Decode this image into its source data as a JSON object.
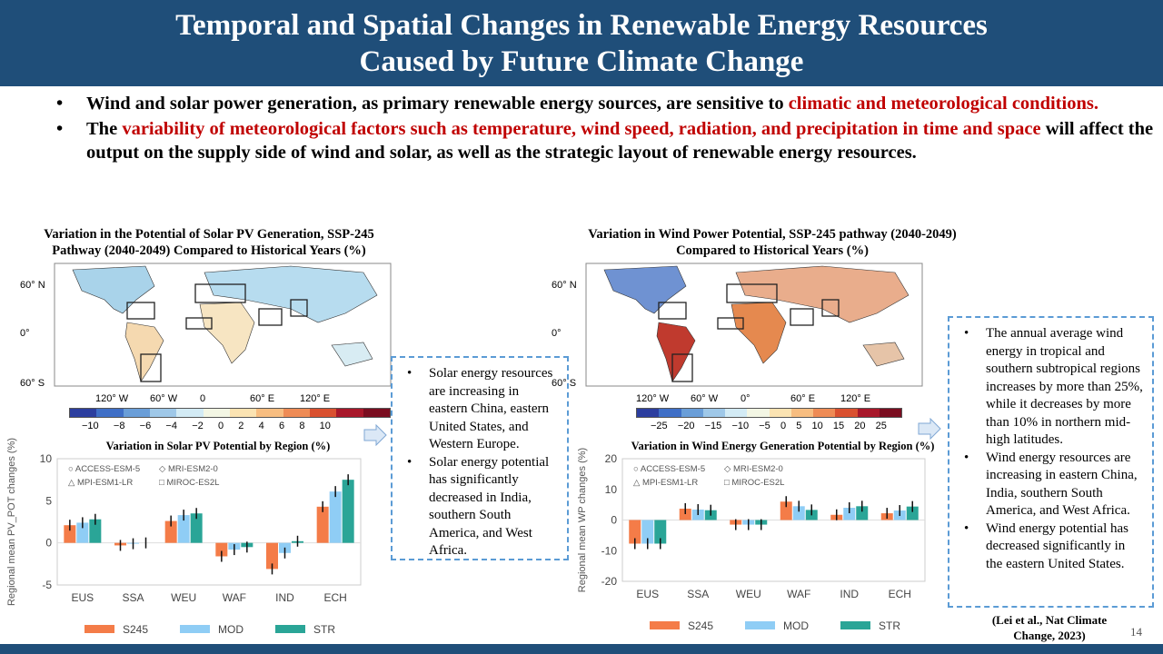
{
  "title": {
    "line1": "Temporal and Spatial Changes in Renewable Energy Resources",
    "line2": "Caused by Future Climate Change"
  },
  "bullets": [
    {
      "p1": "Wind and solar power generation, as primary renewable energy sources, are sensitive to ",
      "r1": "climatic and meteorological conditions.",
      "p2": ""
    },
    {
      "p1": "The ",
      "r1": "variability of meteorological factors such as temperature, wind speed, radiation, and precipitation in time and space",
      "p2": " will affect the output on the supply side of wind and solar, as well as the strategic layout of renewable energy resources."
    }
  ],
  "solar": {
    "map_caption": "Variation in the Potential of Solar PV Generation, SSP-245 Pathway (2040-2049) Compared to Historical Years (%)",
    "lat_labels": [
      "60° N",
      "0°",
      "60° S"
    ],
    "lon_labels": [
      "120° W",
      "60° W",
      "0",
      "60° E",
      "120° E"
    ],
    "colorbar_labels": [
      "−10",
      "−8",
      "−6",
      "−4",
      "−2",
      "0",
      "2",
      "4",
      "6",
      "8",
      "10"
    ],
    "colorbar_colors": [
      "#2c3e9f",
      "#3f6fc7",
      "#6a9ed8",
      "#9fc8e8",
      "#d3ebf5",
      "#f3f6e4",
      "#fbe3b2",
      "#f7bd80",
      "#ee8b55",
      "#d9502f",
      "#a8172a",
      "#7a0d20"
    ]
  },
  "wind": {
    "map_caption": "Variation in Wind Power Potential, SSP-245 pathway (2040-2049) Compared to Historical Years (%)",
    "lat_labels": [
      "60° N",
      "0°",
      "60° S"
    ],
    "lon_labels": [
      "120° W",
      "60° W",
      "0°",
      "60° E",
      "120° E"
    ],
    "colorbar_labels": [
      "−25",
      "−20",
      "−15",
      "−10",
      "−5",
      "0",
      "5",
      "10",
      "15",
      "20",
      "25"
    ],
    "colorbar_colors": [
      "#2c3e9f",
      "#3f6fc7",
      "#6a9ed8",
      "#9fc8e8",
      "#d3ebf5",
      "#f3f6e4",
      "#fbe3b2",
      "#f7bd80",
      "#ee8b55",
      "#d9502f",
      "#a8172a",
      "#7a0d20"
    ]
  },
  "chart_data": [
    {
      "type": "bar",
      "title": "Variation in Solar PV Potential by Region (%)",
      "ylabel": "Regional mean PV_POT changes (%)",
      "ylim": [
        -5,
        10
      ],
      "yticks": [
        -5,
        0,
        5,
        10
      ],
      "categories": [
        "EUS",
        "SSA",
        "WEU",
        "WAF",
        "IND",
        "ECH"
      ],
      "series": [
        {
          "name": "S245",
          "color": "#f47c48",
          "values": [
            2.1,
            -0.3,
            2.6,
            -1.6,
            -3.1,
            4.3
          ]
        },
        {
          "name": "MOD",
          "color": "#8fcdf5",
          "values": [
            2.4,
            -0.1,
            3.3,
            -0.8,
            -1.2,
            6.1
          ]
        },
        {
          "name": "STR",
          "color": "#2aa597",
          "values": [
            2.8,
            0.0,
            3.5,
            -0.5,
            0.2,
            7.5
          ]
        }
      ],
      "model_legend": [
        "ACCESS-ESM-5",
        "MRI-ESM2-0",
        "MPI-ESM1-LR",
        "MIROC-ES2L"
      ]
    },
    {
      "type": "bar",
      "title": "Variation in Wind Energy Generation Potential by Region (%)",
      "ylabel": "Regional mean WP changes (%)",
      "ylim": [
        -20,
        20
      ],
      "yticks": [
        -20,
        -10,
        0,
        10,
        20
      ],
      "categories": [
        "EUS",
        "SSA",
        "WEU",
        "WAF",
        "IND",
        "ECH"
      ],
      "series": [
        {
          "name": "S245",
          "color": "#f47c48",
          "values": [
            -7.7,
            3.7,
            -1.5,
            6.0,
            1.7,
            2.2
          ]
        },
        {
          "name": "MOD",
          "color": "#8fcdf5",
          "values": [
            -7.7,
            3.4,
            -1.5,
            4.5,
            4.0,
            3.1
          ]
        },
        {
          "name": "STR",
          "color": "#2aa597",
          "values": [
            -7.7,
            3.2,
            -1.5,
            3.3,
            4.5,
            4.4
          ]
        }
      ],
      "model_legend": [
        "ACCESS-ESM-5",
        "MRI-ESM2-0",
        "MPI-ESM1-LR",
        "MIROC-ES2L"
      ]
    }
  ],
  "solar_callout": [
    "Solar energy resources are increasing in eastern China, eastern United States, and Western Europe.",
    "Solar energy potential has significantly decreased in India, southern South America, and West Africa."
  ],
  "wind_callout": [
    "The annual average wind energy in tropical and southern subtropical regions  increases by more than 25%, while it decreases by more than 10% in northern mid-high latitudes.",
    "Wind energy resources are increasing in eastern China, India, southern South America, and West Africa.",
    "Wind energy potential has decreased significantly in the eastern United States."
  ],
  "citation": "(Lei et al., Nat Climate Change, 2023)",
  "page_number": "14"
}
